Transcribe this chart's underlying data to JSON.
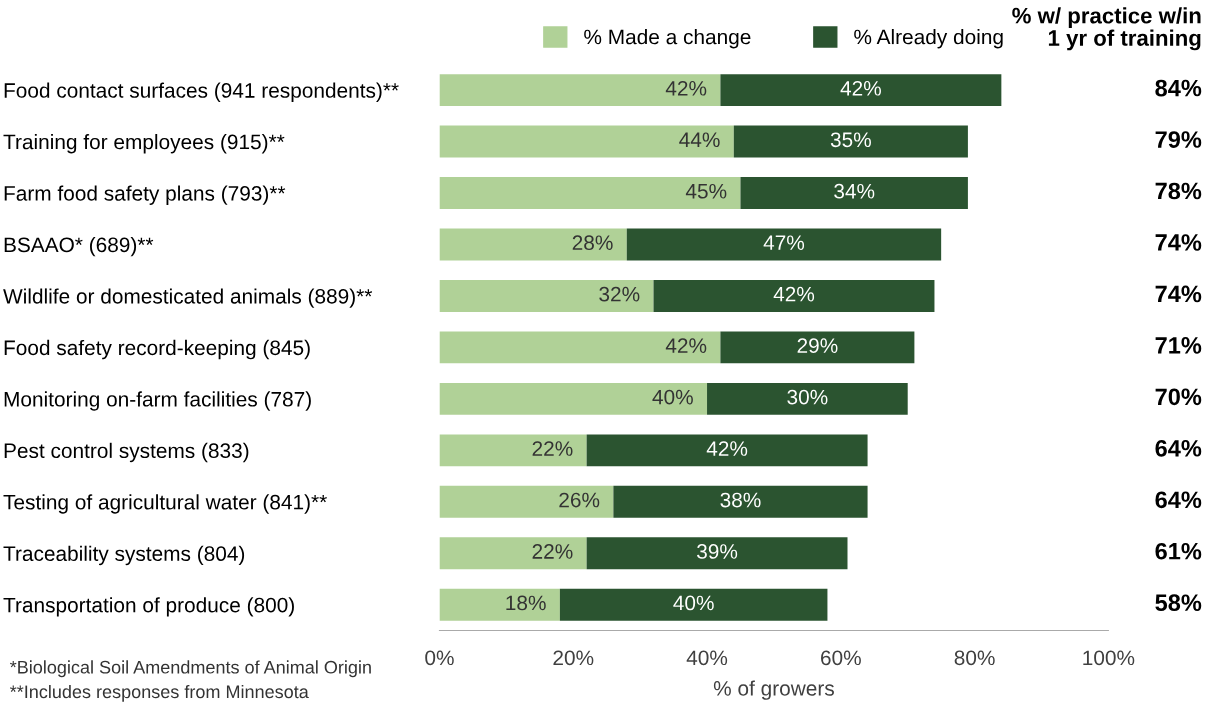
{
  "chart_data": {
    "type": "bar",
    "orientation": "horizontal",
    "stacked": true,
    "categories": [
      "Food contact surfaces (941 respondents)**",
      "Training for employees (915)**",
      "Farm food safety plans (793)**",
      "BSAAO* (689)**",
      "Wildlife or domesticated animals (889)**",
      "Food safety record-keeping (845)",
      "Monitoring on-farm facilities (787)",
      "Pest control systems (833)",
      "Testing of agricultural water (841)**",
      "Traceability systems (804)",
      "Transportation of produce (800)"
    ],
    "series": [
      {
        "name": "% Made a change",
        "color": "#b0d197",
        "values": [
          42,
          44,
          45,
          28,
          32,
          42,
          40,
          22,
          26,
          22,
          18
        ],
        "value_labels": [
          "42%",
          "44%",
          "45%",
          "28%",
          "32%",
          "42%",
          "40%",
          "22%",
          "26%",
          "22%",
          "18%"
        ]
      },
      {
        "name": "% Already doing",
        "color": "#2b5430",
        "values": [
          42,
          35,
          34,
          47,
          42,
          29,
          30,
          42,
          38,
          39,
          40
        ],
        "value_labels": [
          "42%",
          "35%",
          "34%",
          "47%",
          "42%",
          "29%",
          "30%",
          "42%",
          "38%",
          "39%",
          "40%"
        ]
      }
    ],
    "xlim": [
      0,
      100
    ],
    "xticks": [
      {
        "value": 0,
        "label": "0%"
      },
      {
        "value": 20,
        "label": "20%"
      },
      {
        "value": 40,
        "label": "40%"
      },
      {
        "value": 60,
        "label": "60%"
      },
      {
        "value": 80,
        "label": "80%"
      },
      {
        "value": 100,
        "label": "100%"
      }
    ],
    "xlabel": "% of growers",
    "legend": "top",
    "grid": false,
    "annotations": [
      "% w/ practice w/in\n1 yr of training",
      "84%",
      "79%",
      "78%",
      "74%",
      "74%",
      "71%",
      "70%",
      "64%",
      "64%",
      "61%",
      "58%",
      "*Biological Soil Amendments of Animal Origin",
      "**Includes responses from Minnesota"
    ]
  }
}
